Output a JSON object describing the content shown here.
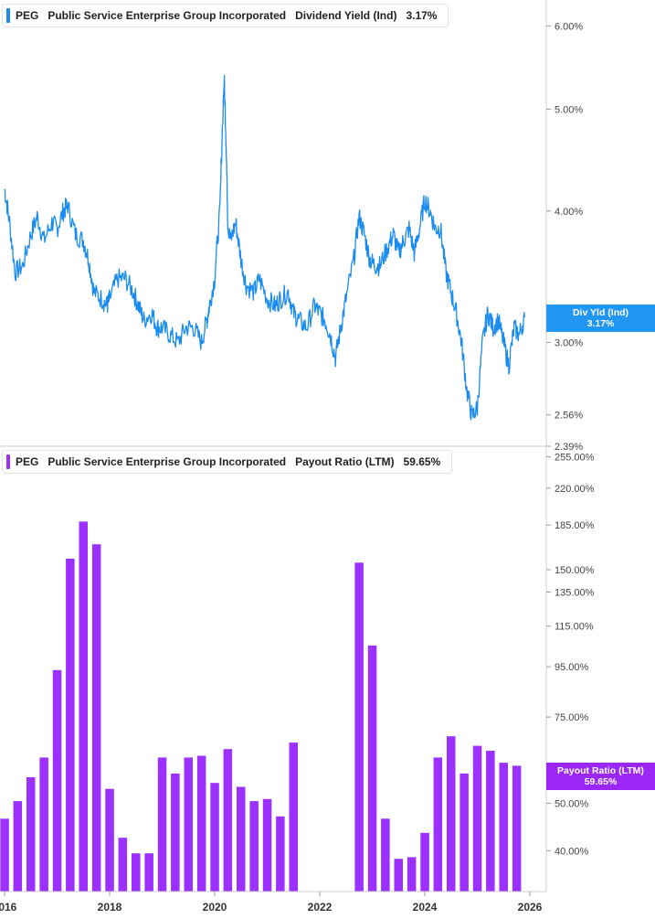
{
  "panels": {
    "top": {
      "ticker": "PEG",
      "company": "Public Service Enterprise Group Incorporated",
      "metric": "Dividend Yield (Ind)",
      "value": "3.17%",
      "tag_label": "Div Yld (Ind)",
      "tag_value": "3.17%"
    },
    "bottom": {
      "ticker": "PEG",
      "company": "Public Service Enterprise Group Incorporated",
      "metric": "Payout Ratio (LTM)",
      "value": "59.65%",
      "tag_label": "Payout Ratio (LTM)",
      "tag_value": "59.65%"
    }
  },
  "colors": {
    "yield": "#1a8cf0",
    "payout": "#9b30ff",
    "yield_tag": "#2196f3",
    "payout_tag": "#9b27f5"
  },
  "x_axis": {
    "ticks": [
      "2016",
      "2018",
      "2020",
      "2022",
      "2024",
      "2026"
    ]
  },
  "chart_data": [
    {
      "type": "line",
      "title": "Dividend Yield (Ind)",
      "y_scale": "log",
      "ylim": [
        2.39,
        6.35
      ],
      "y_ticks": [
        "6.00%",
        "5.00%",
        "4.00%",
        "3.00%",
        "2.56%",
        "2.39%"
      ],
      "series": [
        {
          "name": "Dividend Yield (Ind)",
          "x": [
            2016.0,
            2016.08,
            2016.2,
            2016.35,
            2016.5,
            2016.62,
            2016.75,
            2016.9,
            2017.0,
            2017.12,
            2017.2,
            2017.35,
            2017.5,
            2017.6,
            2017.7,
            2017.85,
            2017.95,
            2018.0,
            2018.15,
            2018.3,
            2018.45,
            2018.55,
            2018.65,
            2018.8,
            2018.9,
            2019.0,
            2019.15,
            2019.3,
            2019.45,
            2019.6,
            2019.75,
            2019.85,
            2019.9,
            2020.0,
            2020.1,
            2020.18,
            2020.22,
            2020.25,
            2020.3,
            2020.4,
            2020.5,
            2020.6,
            2020.75,
            2020.85,
            2021.0,
            2021.15,
            2021.25,
            2021.4,
            2021.5,
            2021.6,
            2021.75,
            2021.9,
            2022.0,
            2022.1,
            2022.2,
            2022.3,
            2022.4,
            2022.5,
            2022.65,
            2022.75,
            2022.85,
            2022.95,
            2023.05,
            2023.15,
            2023.3,
            2023.4,
            2023.5,
            2023.6,
            2023.7,
            2023.8,
            2023.9,
            2024.0,
            2024.1,
            2024.2,
            2024.3,
            2024.4,
            2024.5,
            2024.6,
            2024.7,
            2024.8,
            2024.9,
            2025.0,
            2025.1,
            2025.2,
            2025.3,
            2025.4,
            2025.5,
            2025.6,
            2025.7,
            2025.8,
            2025.9
          ],
          "values": [
            4.2,
            3.95,
            3.5,
            3.55,
            3.8,
            3.95,
            3.75,
            3.9,
            3.85,
            4.0,
            4.05,
            3.8,
            3.75,
            3.6,
            3.35,
            3.3,
            3.25,
            3.3,
            3.45,
            3.45,
            3.35,
            3.25,
            3.15,
            3.2,
            3.1,
            3.1,
            3.05,
            3.0,
            3.1,
            3.1,
            3.0,
            3.15,
            3.25,
            3.45,
            4.0,
            5.35,
            4.6,
            3.9,
            3.75,
            3.9,
            3.6,
            3.4,
            3.35,
            3.45,
            3.3,
            3.25,
            3.3,
            3.35,
            3.2,
            3.15,
            3.1,
            3.25,
            3.2,
            3.15,
            3.05,
            2.9,
            3.1,
            3.3,
            3.6,
            3.95,
            3.8,
            3.6,
            3.55,
            3.55,
            3.7,
            3.8,
            3.65,
            3.75,
            3.85,
            3.65,
            3.85,
            4.1,
            4.0,
            3.85,
            3.85,
            3.5,
            3.35,
            3.2,
            3.0,
            2.7,
            2.55,
            2.6,
            3.0,
            3.2,
            3.1,
            3.15,
            3.0,
            2.85,
            3.1,
            3.05,
            3.17
          ]
        }
      ]
    },
    {
      "type": "bar",
      "title": "Payout Ratio (LTM)",
      "y_scale": "log",
      "ylim": [
        33,
        268
      ],
      "y_ticks": [
        "255.00%",
        "220.00%",
        "185.00%",
        "150.00%",
        "135.00%",
        "115.00%",
        "95.00%",
        "75.00%",
        "55.00%",
        "50.00%",
        "40.00%"
      ],
      "series": [
        {
          "name": "Payout Ratio (LTM)",
          "x": [
            2016.0,
            2016.25,
            2016.5,
            2016.75,
            2017.0,
            2017.25,
            2017.5,
            2017.75,
            2018.0,
            2018.25,
            2018.5,
            2018.75,
            2019.0,
            2019.25,
            2019.5,
            2019.75,
            2020.0,
            2020.25,
            2020.5,
            2020.75,
            2021.0,
            2021.25,
            2021.5,
            2022.75,
            2023.0,
            2023.25,
            2023.5,
            2023.75,
            2024.0,
            2024.25,
            2024.5,
            2024.75,
            2025.0,
            2025.25,
            2025.5,
            2025.75
          ],
          "values": [
            46.5,
            50.5,
            56.5,
            62,
            93.5,
            158,
            188,
            169,
            53.5,
            42.5,
            39.5,
            39.5,
            62,
            57.5,
            62,
            62.5,
            55,
            64.5,
            54,
            50.5,
            51,
            47,
            66.5,
            155,
            105,
            46.5,
            38.5,
            38.8,
            43.5,
            62,
            68.5,
            57.5,
            65.5,
            64,
            60.5,
            59.65
          ]
        }
      ]
    }
  ]
}
